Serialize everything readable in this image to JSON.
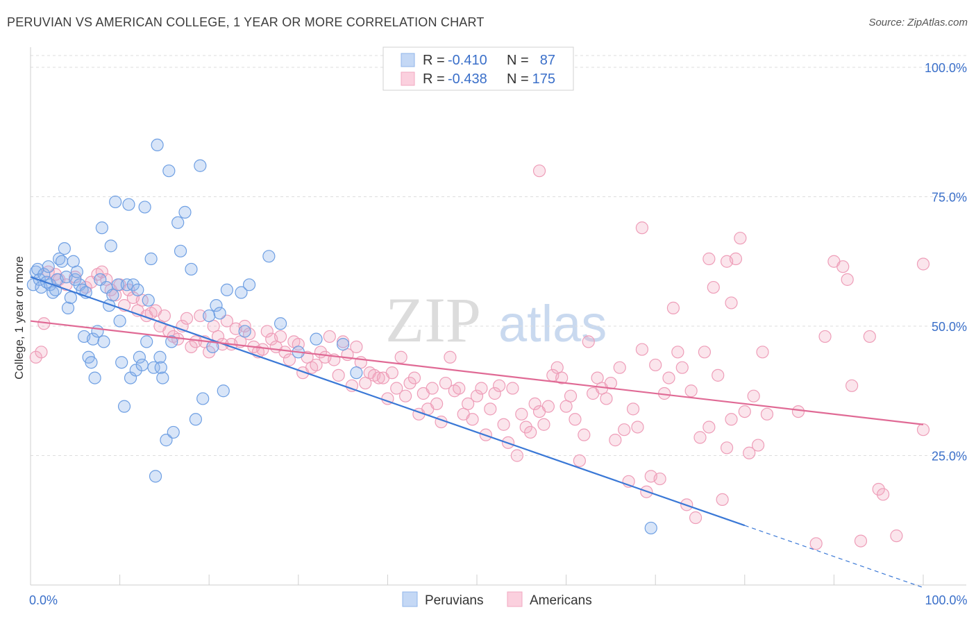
{
  "title": "PERUVIAN VS AMERICAN COLLEGE, 1 YEAR OR MORE CORRELATION CHART",
  "source": "Source: ZipAtlas.com",
  "watermark": {
    "zip": "ZIP",
    "atlas": "atlas"
  },
  "legend_box": {
    "rows": [
      {
        "r_label": "R =",
        "r_value": "-0.410",
        "n_label": "N =",
        "n_value": "87",
        "color": "#8fb5ea"
      },
      {
        "r_label": "R =",
        "r_value": "-0.438",
        "n_label": "N =",
        "n_value": "175",
        "color": "#f2a9c1"
      }
    ]
  },
  "bottom_legend": [
    {
      "label": "Peruvians",
      "color": "#8fb5ea"
    },
    {
      "label": "Americans",
      "color": "#f2a9c1"
    }
  ],
  "chart_data": {
    "type": "scatter",
    "xlabel": "",
    "ylabel": "College, 1 year or more",
    "xlim": [
      0,
      100
    ],
    "ylim": [
      0,
      100
    ],
    "x_tick_labels": [
      {
        "value": 0,
        "label": "0.0%"
      },
      {
        "value": 100,
        "label": "100.0%"
      }
    ],
    "y_tick_labels": [
      {
        "value": 25,
        "label": "25.0%"
      },
      {
        "value": 50,
        "label": "50.0%"
      },
      {
        "value": 75,
        "label": "75.0%"
      },
      {
        "value": 100,
        "label": "100.0%"
      }
    ],
    "grid": "horizontal dashed",
    "legend_position": "top-center",
    "colors": {
      "peruvians": "#3a78d6",
      "americans": "#e06a95"
    },
    "series": [
      {
        "name": "Peruvians",
        "trend": {
          "x0": 0,
          "y0": 59.5,
          "x1": 80,
          "y1": 11.5,
          "dashed_to_x": 100
        },
        "points": [
          [
            0.3,
            58
          ],
          [
            0.6,
            60.5
          ],
          [
            0.8,
            61
          ],
          [
            1,
            59
          ],
          [
            1.2,
            57.5
          ],
          [
            1.5,
            60
          ],
          [
            1.8,
            58.5
          ],
          [
            2,
            61.5
          ],
          [
            2.2,
            58
          ],
          [
            2.5,
            56.5
          ],
          [
            2.8,
            57
          ],
          [
            3,
            59
          ],
          [
            3.2,
            63
          ],
          [
            3.5,
            62.5
          ],
          [
            3.8,
            65
          ],
          [
            4,
            59.5
          ],
          [
            4.2,
            53.5
          ],
          [
            4.5,
            55.5
          ],
          [
            4.8,
            62.5
          ],
          [
            5,
            59
          ],
          [
            5.2,
            60.5
          ],
          [
            5.5,
            58
          ],
          [
            5.8,
            57
          ],
          [
            6,
            48
          ],
          [
            6.2,
            56.5
          ],
          [
            6.5,
            44
          ],
          [
            6.8,
            43
          ],
          [
            7,
            47.5
          ],
          [
            7.2,
            40
          ],
          [
            7.5,
            49
          ],
          [
            7.8,
            59
          ],
          [
            8,
            69
          ],
          [
            8.2,
            47
          ],
          [
            8.5,
            57.5
          ],
          [
            8.8,
            54
          ],
          [
            9,
            65.5
          ],
          [
            9.2,
            56
          ],
          [
            9.5,
            74
          ],
          [
            9.8,
            58
          ],
          [
            10,
            51
          ],
          [
            10.2,
            43
          ],
          [
            10.5,
            34.5
          ],
          [
            10.8,
            58
          ],
          [
            11,
            73.5
          ],
          [
            11.2,
            40
          ],
          [
            11.5,
            58
          ],
          [
            11.8,
            41.5
          ],
          [
            12,
            57
          ],
          [
            12.2,
            44
          ],
          [
            12.5,
            42.5
          ],
          [
            12.8,
            73
          ],
          [
            13,
            47
          ],
          [
            13.2,
            55
          ],
          [
            13.5,
            63
          ],
          [
            13.8,
            42
          ],
          [
            14,
            21
          ],
          [
            14.2,
            85
          ],
          [
            14.5,
            44
          ],
          [
            14.8,
            40
          ],
          [
            15.2,
            28
          ],
          [
            15.5,
            80
          ],
          [
            15.8,
            47
          ],
          [
            16,
            29.5
          ],
          [
            16.5,
            70
          ],
          [
            16.8,
            64.5
          ],
          [
            17.3,
            72
          ],
          [
            18,
            61
          ],
          [
            18.5,
            32
          ],
          [
            19,
            81
          ],
          [
            19.3,
            36
          ],
          [
            20,
            52
          ],
          [
            20.4,
            46
          ],
          [
            20.8,
            54
          ],
          [
            21.2,
            52.5
          ],
          [
            21.6,
            37.5
          ],
          [
            22,
            57
          ],
          [
            23.6,
            56.5
          ],
          [
            24,
            49
          ],
          [
            24.5,
            58
          ],
          [
            26.7,
            63.5
          ],
          [
            28,
            50.5
          ],
          [
            30,
            45
          ],
          [
            32,
            47.5
          ],
          [
            35,
            46.5
          ],
          [
            36.5,
            41
          ],
          [
            69.5,
            11
          ],
          [
            14.6,
            42
          ]
        ]
      },
      {
        "name": "Americans",
        "trend": {
          "x0": 0,
          "y0": 51,
          "x1": 100,
          "y1": 31
        },
        "points": [
          [
            0.6,
            44
          ],
          [
            1.2,
            45
          ],
          [
            1.5,
            50.5
          ],
          [
            2,
            60.5
          ],
          [
            2.8,
            60
          ],
          [
            3.2,
            59
          ],
          [
            4,
            58
          ],
          [
            5,
            59.5
          ],
          [
            6.2,
            57.5
          ],
          [
            6.8,
            58.5
          ],
          [
            7.5,
            60
          ],
          [
            8,
            60.5
          ],
          [
            8.5,
            59
          ],
          [
            9,
            57
          ],
          [
            9.5,
            56
          ],
          [
            10,
            58
          ],
          [
            10.5,
            54
          ],
          [
            11,
            57
          ],
          [
            11.5,
            55.5
          ],
          [
            12,
            53
          ],
          [
            12.5,
            55
          ],
          [
            13,
            52
          ],
          [
            13.5,
            52.5
          ],
          [
            14,
            53
          ],
          [
            14.5,
            50
          ],
          [
            15,
            52
          ],
          [
            15.5,
            49
          ],
          [
            16,
            48
          ],
          [
            16.5,
            47.5
          ],
          [
            17,
            50
          ],
          [
            17.5,
            51.5
          ],
          [
            18,
            46
          ],
          [
            18.5,
            47
          ],
          [
            19,
            52
          ],
          [
            19.5,
            47
          ],
          [
            20,
            45
          ],
          [
            20.5,
            50
          ],
          [
            21,
            48
          ],
          [
            21.5,
            46.5
          ],
          [
            22,
            51
          ],
          [
            22.5,
            46.5
          ],
          [
            23,
            49.5
          ],
          [
            23.5,
            47
          ],
          [
            24,
            50
          ],
          [
            24.5,
            48.5
          ],
          [
            25,
            46
          ],
          [
            25.5,
            45
          ],
          [
            26,
            45.5
          ],
          [
            26.5,
            49
          ],
          [
            27,
            47.5
          ],
          [
            27.5,
            46
          ],
          [
            28,
            48
          ],
          [
            28.5,
            45
          ],
          [
            29,
            43.5
          ],
          [
            29.5,
            47
          ],
          [
            30,
            46.5
          ],
          [
            30.5,
            41
          ],
          [
            31,
            44
          ],
          [
            31.5,
            42
          ],
          [
            32,
            42.5
          ],
          [
            32.5,
            45
          ],
          [
            33,
            44
          ],
          [
            33.5,
            48
          ],
          [
            34,
            43.5
          ],
          [
            34.5,
            40.5
          ],
          [
            35,
            47
          ],
          [
            35.5,
            44.5
          ],
          [
            36,
            38.5
          ],
          [
            36.5,
            46
          ],
          [
            37,
            43
          ],
          [
            37.5,
            39
          ],
          [
            38,
            41
          ],
          [
            38.5,
            40.5
          ],
          [
            39,
            40
          ],
          [
            39.5,
            40
          ],
          [
            40,
            36
          ],
          [
            40.5,
            41
          ],
          [
            41,
            38
          ],
          [
            41.5,
            44
          ],
          [
            42,
            36.5
          ],
          [
            42.5,
            39
          ],
          [
            43,
            40
          ],
          [
            43.5,
            33
          ],
          [
            44,
            37
          ],
          [
            44.5,
            34
          ],
          [
            45,
            38
          ],
          [
            45.5,
            35
          ],
          [
            46,
            31.5
          ],
          [
            46.5,
            39
          ],
          [
            47,
            44
          ],
          [
            47.5,
            37.5
          ],
          [
            48,
            38
          ],
          [
            48.5,
            33
          ],
          [
            49,
            35
          ],
          [
            49.5,
            32
          ],
          [
            50,
            36.5
          ],
          [
            50.5,
            38
          ],
          [
            51,
            29
          ],
          [
            51.5,
            34
          ],
          [
            52,
            37
          ],
          [
            52.5,
            38.5
          ],
          [
            53,
            31
          ],
          [
            53.5,
            27.5
          ],
          [
            54,
            38
          ],
          [
            54.5,
            25
          ],
          [
            55,
            33
          ],
          [
            55.5,
            30.5
          ],
          [
            56,
            29.5
          ],
          [
            56.5,
            35
          ],
          [
            57,
            33.5
          ],
          [
            57.5,
            31
          ],
          [
            58,
            34.5
          ],
          [
            58.5,
            40.5
          ],
          [
            59,
            42
          ],
          [
            59.5,
            40
          ],
          [
            60,
            34.5
          ],
          [
            60.5,
            36.5
          ],
          [
            61,
            32
          ],
          [
            61.5,
            24
          ],
          [
            62,
            29
          ],
          [
            62.5,
            47
          ],
          [
            63,
            37
          ],
          [
            63.5,
            40
          ],
          [
            64,
            38
          ],
          [
            64.5,
            36
          ],
          [
            65,
            39
          ],
          [
            65.5,
            28
          ],
          [
            66,
            42
          ],
          [
            66.5,
            30
          ],
          [
            67,
            20
          ],
          [
            67.5,
            34
          ],
          [
            68,
            30.5
          ],
          [
            68.5,
            45.5
          ],
          [
            69,
            18
          ],
          [
            69.5,
            21
          ],
          [
            70,
            42.5
          ],
          [
            70.5,
            20.5
          ],
          [
            71,
            37
          ],
          [
            71.5,
            40
          ],
          [
            72,
            53.5
          ],
          [
            72.5,
            45
          ],
          [
            73,
            42
          ],
          [
            73.5,
            15.5
          ],
          [
            74,
            37.5
          ],
          [
            74.5,
            13
          ],
          [
            75,
            28.5
          ],
          [
            75.5,
            45
          ],
          [
            76,
            30.5
          ],
          [
            76.5,
            57.5
          ],
          [
            77,
            40.5
          ],
          [
            77.5,
            16.5
          ],
          [
            78,
            26.5
          ],
          [
            78.5,
            54.5
          ],
          [
            79,
            63
          ],
          [
            79.5,
            67
          ],
          [
            80,
            33.5
          ],
          [
            80.5,
            25.5
          ],
          [
            81,
            36.5
          ],
          [
            81.5,
            27
          ],
          [
            82,
            45
          ],
          [
            82.5,
            33
          ],
          [
            57,
            80
          ],
          [
            68.5,
            69
          ],
          [
            76,
            63
          ],
          [
            78,
            62.5
          ],
          [
            90,
            62.5
          ],
          [
            91,
            61.5
          ],
          [
            91.5,
            59
          ],
          [
            89,
            48
          ],
          [
            92,
            38.5
          ],
          [
            94,
            48
          ],
          [
            95,
            18.5
          ],
          [
            95.5,
            17.5
          ],
          [
            88,
            8
          ],
          [
            93,
            8.5
          ],
          [
            97,
            9.5
          ],
          [
            100,
            62
          ],
          [
            86,
            33.5
          ],
          [
            78.5,
            32
          ],
          [
            100,
            30
          ]
        ]
      }
    ]
  }
}
